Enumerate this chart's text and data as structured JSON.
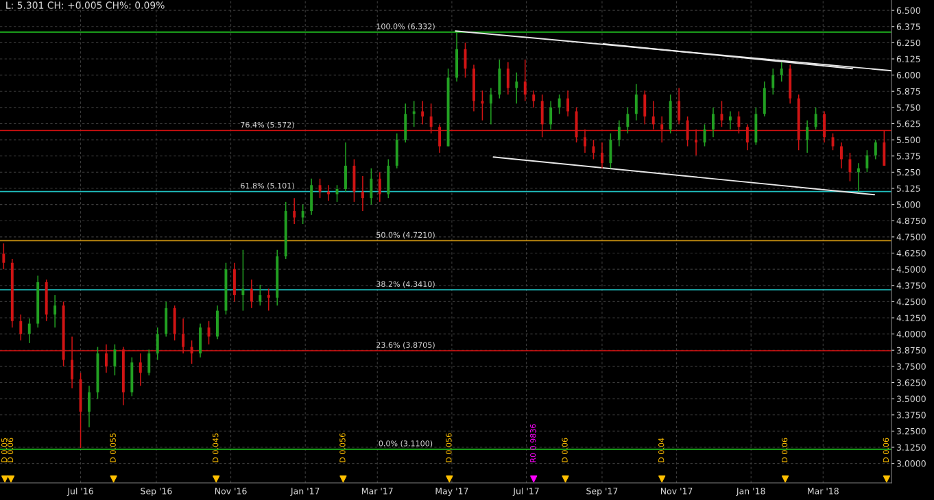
{
  "chart_data": {
    "type": "candlestick",
    "title": "L: 5.301 CH: +0.005 CH%: 0.09%",
    "xlim": [
      "2016-04-26",
      "2018-04-26"
    ],
    "xticks": [
      {
        "value": "2016-07-01",
        "label": "Jul '16"
      },
      {
        "value": "2016-09-01",
        "label": "Sep '16"
      },
      {
        "value": "2016-11-01",
        "label": "Nov '16"
      },
      {
        "value": "2017-01-01",
        "label": "Jan '17"
      },
      {
        "value": "2017-03-01",
        "label": "Mar '17"
      },
      {
        "value": "2017-05-01",
        "label": "May '17"
      },
      {
        "value": "2017-07-01",
        "label": "Jul '17"
      },
      {
        "value": "2017-09-01",
        "label": "Sep '17"
      },
      {
        "value": "2017-11-01",
        "label": "Nov '17"
      },
      {
        "value": "2018-01-01",
        "label": "Jan '18"
      },
      {
        "value": "2018-03-01",
        "label": "Mar '18"
      }
    ],
    "ylim": [
      2.85,
      6.58
    ],
    "yticks": [
      {
        "value": 6.5,
        "label": "6.500"
      },
      {
        "value": 6.375,
        "label": "6.375"
      },
      {
        "value": 6.25,
        "label": "6.250"
      },
      {
        "value": 6.125,
        "label": "6.125"
      },
      {
        "value": 6.0,
        "label": "6.000"
      },
      {
        "value": 5.875,
        "label": "5.875"
      },
      {
        "value": 5.75,
        "label": "5.750"
      },
      {
        "value": 5.625,
        "label": "5.625"
      },
      {
        "value": 5.5,
        "label": "5.500"
      },
      {
        "value": 5.375,
        "label": "5.375"
      },
      {
        "value": 5.25,
        "label": "5.250"
      },
      {
        "value": 5.125,
        "label": "5.125"
      },
      {
        "value": 5.0,
        "label": "5.000"
      },
      {
        "value": 4.875,
        "label": "4.8750"
      },
      {
        "value": 4.75,
        "label": "4.7500"
      },
      {
        "value": 4.625,
        "label": "4.6250"
      },
      {
        "value": 4.5,
        "label": "4.5000"
      },
      {
        "value": 4.375,
        "label": "4.3750"
      },
      {
        "value": 4.25,
        "label": "4.2500"
      },
      {
        "value": 4.125,
        "label": "4.1250"
      },
      {
        "value": 4.0,
        "label": "4.0000"
      },
      {
        "value": 3.875,
        "label": "3.8750"
      },
      {
        "value": 3.75,
        "label": "3.7500"
      },
      {
        "value": 3.625,
        "label": "3.6250"
      },
      {
        "value": 3.5,
        "label": "3.5000"
      },
      {
        "value": 3.375,
        "label": "3.3750"
      },
      {
        "value": 3.25,
        "label": "3.2500"
      },
      {
        "value": 3.125,
        "label": "3.1250"
      },
      {
        "value": 3.0,
        "label": "3.0000"
      }
    ],
    "grid": true,
    "series": [
      {
        "x": [
          "2016-04-29",
          "2016-05-06",
          "2016-05-13",
          "2016-05-20",
          "2016-05-27",
          "2016-06-03",
          "2016-06-10",
          "2016-06-17",
          "2016-06-24",
          "2016-07-01",
          "2016-07-08",
          "2016-07-15",
          "2016-07-22",
          "2016-07-29",
          "2016-08-05",
          "2016-08-12",
          "2016-08-19",
          "2016-08-26",
          "2016-09-02",
          "2016-09-09",
          "2016-09-16",
          "2016-09-23",
          "2016-09-30",
          "2016-10-07",
          "2016-10-14",
          "2016-10-21",
          "2016-10-28",
          "2016-11-04",
          "2016-11-11",
          "2016-11-18",
          "2016-11-25",
          "2016-12-02",
          "2016-12-09",
          "2016-12-16",
          "2016-12-23",
          "2016-12-30",
          "2017-01-06",
          "2017-01-13",
          "2017-01-20",
          "2017-01-27",
          "2017-02-03",
          "2017-02-10",
          "2017-02-17",
          "2017-02-24",
          "2017-03-03",
          "2017-03-10",
          "2017-03-17",
          "2017-03-24",
          "2017-03-31",
          "2017-04-07",
          "2017-04-14",
          "2017-04-21",
          "2017-04-28",
          "2017-05-05",
          "2017-05-12",
          "2017-05-19",
          "2017-05-26",
          "2017-06-02",
          "2017-06-09",
          "2017-06-16",
          "2017-06-23",
          "2017-06-30",
          "2017-07-07",
          "2017-07-14",
          "2017-07-21",
          "2017-07-28",
          "2017-08-04",
          "2017-08-11",
          "2017-08-18",
          "2017-08-25",
          "2017-09-01",
          "2017-09-08",
          "2017-09-15",
          "2017-09-22",
          "2017-09-29",
          "2017-10-06",
          "2017-10-13",
          "2017-10-20",
          "2017-10-27",
          "2017-11-03",
          "2017-11-10",
          "2017-11-17",
          "2017-11-24",
          "2017-12-01",
          "2017-12-08",
          "2017-12-15",
          "2017-12-22",
          "2017-12-29",
          "2018-01-05",
          "2018-01-12",
          "2018-01-19",
          "2018-01-26",
          "2018-02-02",
          "2018-02-09",
          "2018-02-16",
          "2018-02-23",
          "2018-03-02",
          "2018-03-09",
          "2018-03-16",
          "2018-03-23",
          "2018-03-30",
          "2018-04-06",
          "2018-04-13",
          "2018-04-20"
        ],
        "ohlc": [
          [
            4.62,
            4.7,
            4.5,
            4.55
          ],
          [
            4.55,
            4.58,
            4.05,
            4.1
          ],
          [
            4.1,
            4.15,
            3.95,
            4.0
          ],
          [
            4.0,
            4.12,
            3.93,
            4.08
          ],
          [
            4.08,
            4.45,
            4.05,
            4.4
          ],
          [
            4.4,
            4.42,
            4.1,
            4.15
          ],
          [
            4.15,
            4.3,
            4.05,
            4.22
          ],
          [
            4.22,
            4.25,
            3.75,
            3.8
          ],
          [
            3.8,
            3.98,
            3.58,
            3.65
          ],
          [
            3.65,
            3.7,
            3.12,
            3.4
          ],
          [
            3.4,
            3.6,
            3.28,
            3.55
          ],
          [
            3.55,
            3.9,
            3.5,
            3.85
          ],
          [
            3.85,
            3.92,
            3.7,
            3.75
          ],
          [
            3.75,
            3.92,
            3.68,
            3.88
          ],
          [
            3.88,
            3.9,
            3.45,
            3.55
          ],
          [
            3.55,
            3.82,
            3.52,
            3.78
          ],
          [
            3.78,
            3.85,
            3.6,
            3.7
          ],
          [
            3.7,
            3.88,
            3.68,
            3.85
          ],
          [
            3.85,
            4.05,
            3.8,
            4.0
          ],
          [
            4.0,
            4.25,
            3.98,
            4.2
          ],
          [
            4.2,
            4.22,
            3.95,
            4.0
          ],
          [
            4.0,
            4.12,
            3.85,
            3.9
          ],
          [
            3.9,
            3.95,
            3.77,
            3.85
          ],
          [
            3.85,
            4.08,
            3.82,
            4.05
          ],
          [
            4.05,
            4.1,
            3.92,
            3.98
          ],
          [
            3.98,
            4.22,
            3.96,
            4.18
          ],
          [
            4.18,
            4.55,
            4.15,
            4.5
          ],
          [
            4.5,
            4.55,
            4.25,
            4.3
          ],
          [
            4.3,
            4.65,
            4.18,
            4.35
          ],
          [
            4.35,
            4.42,
            4.2,
            4.25
          ],
          [
            4.25,
            4.38,
            4.22,
            4.3
          ],
          [
            4.3,
            4.35,
            4.18,
            4.28
          ],
          [
            4.28,
            4.65,
            4.22,
            4.6
          ],
          [
            4.6,
            5.02,
            4.58,
            4.95
          ],
          [
            4.95,
            5.05,
            4.85,
            4.9
          ],
          [
            4.9,
            5.0,
            4.85,
            4.95
          ],
          [
            4.95,
            5.2,
            4.92,
            5.15
          ],
          [
            5.15,
            5.2,
            5.05,
            5.1
          ],
          [
            5.1,
            5.15,
            5.03,
            5.08
          ],
          [
            5.08,
            5.15,
            5.02,
            5.12
          ],
          [
            5.12,
            5.48,
            5.1,
            5.3
          ],
          [
            5.3,
            5.35,
            5.02,
            5.1
          ],
          [
            5.1,
            5.22,
            4.95,
            5.05
          ],
          [
            5.05,
            5.28,
            5.0,
            5.2
          ],
          [
            5.2,
            5.25,
            5.02,
            5.08
          ],
          [
            5.08,
            5.35,
            5.05,
            5.3
          ],
          [
            5.3,
            5.55,
            5.28,
            5.5
          ],
          [
            5.5,
            5.78,
            5.48,
            5.7
          ],
          [
            5.7,
            5.8,
            5.6,
            5.72
          ],
          [
            5.72,
            5.8,
            5.62,
            5.68
          ],
          [
            5.68,
            5.78,
            5.55,
            5.6
          ],
          [
            5.6,
            5.62,
            5.4,
            5.45
          ],
          [
            5.45,
            6.05,
            5.45,
            5.98
          ],
          [
            5.98,
            6.33,
            5.95,
            6.2
          ],
          [
            6.2,
            6.25,
            5.98,
            6.05
          ],
          [
            6.05,
            6.08,
            5.72,
            5.8
          ],
          [
            5.8,
            5.88,
            5.65,
            5.78
          ],
          [
            5.78,
            5.9,
            5.62,
            5.85
          ],
          [
            5.85,
            6.12,
            5.82,
            6.05
          ],
          [
            6.05,
            6.1,
            5.85,
            5.9
          ],
          [
            5.9,
            6.02,
            5.78,
            5.95
          ],
          [
            5.95,
            6.12,
            5.8,
            5.85
          ],
          [
            5.85,
            5.88,
            5.75,
            5.8
          ],
          [
            5.8,
            5.85,
            5.52,
            5.62
          ],
          [
            5.62,
            5.8,
            5.58,
            5.75
          ],
          [
            5.75,
            5.85,
            5.7,
            5.82
          ],
          [
            5.82,
            5.88,
            5.68,
            5.72
          ],
          [
            5.72,
            5.75,
            5.48,
            5.52
          ],
          [
            5.52,
            5.58,
            5.4,
            5.45
          ],
          [
            5.45,
            5.5,
            5.35,
            5.4
          ],
          [
            5.4,
            5.48,
            5.28,
            5.32
          ],
          [
            5.32,
            5.55,
            5.28,
            5.5
          ],
          [
            5.5,
            5.65,
            5.45,
            5.6
          ],
          [
            5.6,
            5.75,
            5.55,
            5.7
          ],
          [
            5.7,
            5.93,
            5.65,
            5.85
          ],
          [
            5.85,
            5.88,
            5.62,
            5.68
          ],
          [
            5.68,
            5.8,
            5.58,
            5.62
          ],
          [
            5.62,
            5.68,
            5.48,
            5.58
          ],
          [
            5.58,
            5.85,
            5.55,
            5.8
          ],
          [
            5.8,
            5.9,
            5.62,
            5.65
          ],
          [
            5.65,
            5.68,
            5.45,
            5.5
          ],
          [
            5.5,
            5.58,
            5.38,
            5.48
          ],
          [
            5.48,
            5.62,
            5.45,
            5.58
          ],
          [
            5.58,
            5.75,
            5.52,
            5.7
          ],
          [
            5.7,
            5.8,
            5.6,
            5.65
          ],
          [
            5.65,
            5.72,
            5.58,
            5.68
          ],
          [
            5.68,
            5.72,
            5.55,
            5.6
          ],
          [
            5.6,
            5.62,
            5.42,
            5.48
          ],
          [
            5.48,
            5.75,
            5.46,
            5.7
          ],
          [
            5.7,
            5.95,
            5.68,
            5.9
          ],
          [
            5.9,
            6.05,
            5.85,
            6.0
          ],
          [
            6.0,
            6.1,
            5.95,
            6.05
          ],
          [
            6.05,
            6.08,
            5.78,
            5.82
          ],
          [
            5.82,
            5.85,
            5.42,
            5.5
          ],
          [
            5.5,
            5.65,
            5.4,
            5.6
          ],
          [
            5.6,
            5.75,
            5.58,
            5.7
          ],
          [
            5.7,
            5.72,
            5.48,
            5.52
          ],
          [
            5.52,
            5.55,
            5.42,
            5.45
          ],
          [
            5.45,
            5.48,
            5.28,
            5.35
          ],
          [
            5.35,
            5.4,
            5.18,
            5.25
          ],
          [
            5.25,
            5.32,
            5.1,
            5.28
          ],
          [
            5.28,
            5.42,
            5.25,
            5.38
          ],
          [
            5.38,
            5.5,
            5.35,
            5.48
          ],
          [
            5.48,
            5.57,
            5.3,
            5.3
          ]
        ],
        "colors": [
          "#d01414",
          "#d01414",
          "#d01414",
          "#22a022",
          "#22a022",
          "#d01414",
          "#22a022",
          "#d01414",
          "#d01414",
          "#d01414",
          "#22a022",
          "#22a022",
          "#d01414",
          "#22a022",
          "#d01414",
          "#22a022",
          "#d01414",
          "#22a022",
          "#22a022",
          "#22a022",
          "#d01414",
          "#d01414",
          "#d01414",
          "#22a022",
          "#d01414",
          "#22a022",
          "#22a022",
          "#d01414",
          "#22a022",
          "#d01414",
          "#22a022",
          "#d01414",
          "#22a022",
          "#22a022",
          "#d01414",
          "#22a022",
          "#22a022",
          "#d01414",
          "#d01414",
          "#22a022",
          "#22a022",
          "#d01414",
          "#d01414",
          "#22a022",
          "#d01414",
          "#22a022",
          "#22a022",
          "#22a022",
          "#22a022",
          "#d01414",
          "#d01414",
          "#d01414",
          "#22a022",
          "#22a022",
          "#d01414",
          "#d01414",
          "#d01414",
          "#22a022",
          "#22a022",
          "#d01414",
          "#22a022",
          "#d01414",
          "#d01414",
          "#d01414",
          "#22a022",
          "#22a022",
          "#d01414",
          "#d01414",
          "#d01414",
          "#d01414",
          "#d01414",
          "#22a022",
          "#22a022",
          "#22a022",
          "#22a022",
          "#d01414",
          "#d01414",
          "#d01414",
          "#22a022",
          "#d01414",
          "#d01414",
          "#d01414",
          "#22a022",
          "#22a022",
          "#d01414",
          "#22a022",
          "#d01414",
          "#d01414",
          "#22a022",
          "#22a022",
          "#22a022",
          "#22a022",
          "#d01414",
          "#d01414",
          "#22a022",
          "#22a022",
          "#d01414",
          "#d01414",
          "#d01414",
          "#d01414",
          "#22a022",
          "#22a022",
          "#22a022",
          "#d01414"
        ]
      },
      {
        "type": "line",
        "color": "#e8e8e8",
        "x": [
          "2017-05-04",
          "2018-04-26"
        ],
        "values": [
          6.341,
          6.034
        ]
      },
      {
        "type": "line",
        "color": "#e8e8e8",
        "x": [
          "2017-09-02",
          "2018-03-25"
        ],
        "values": [
          6.241,
          6.05
        ]
      },
      {
        "type": "line",
        "color": "#e8e8e8",
        "x": [
          "2017-06-04",
          "2018-04-12"
        ],
        "values": [
          5.367,
          5.076
        ]
      },
      {
        "type": "scatter",
        "color": "#ffc000",
        "marker": "triangle",
        "x": [
          "2016-04-30",
          "2016-05-05",
          "2016-07-28",
          "2016-10-20",
          "2017-02-01",
          "2017-04-29",
          "2017-08-02",
          "2017-10-20",
          "2018-01-29",
          "2018-04-22"
        ],
        "values": [
          2.88,
          2.88,
          2.88,
          2.88,
          2.88,
          2.88,
          2.88,
          2.88,
          2.88,
          2.88
        ],
        "value_labels": [
          "D 0.05",
          "D 0.06",
          "D 0.055",
          "D 0.045",
          "D 0.056",
          "D 0.056",
          "D 0.06",
          "D 0.04",
          "D 0.06",
          "D 0.06"
        ]
      },
      {
        "type": "scatter",
        "color": "#ff00ff",
        "marker": "triangle",
        "x": [
          "2017-07-07"
        ],
        "values": [
          2.88
        ],
        "value_labels": [
          "R0 0.9836"
        ]
      }
    ],
    "ref_lines": [
      {
        "axis": "y",
        "value": 6.332,
        "label": "100.0% (6.332)",
        "color": "#20c020"
      },
      {
        "axis": "y",
        "value": 5.572,
        "label": "76.4% (5.572)",
        "color": "#d01010"
      },
      {
        "axis": "y",
        "value": 5.101,
        "label": "61.8% (5.101)",
        "color": "#20c0c0"
      },
      {
        "axis": "y",
        "value": 4.721,
        "label": "50.0% (4.7210)",
        "color": "#c89010"
      },
      {
        "axis": "y",
        "value": 4.341,
        "label": "38.2% (4.3410)",
        "color": "#20c0c0"
      },
      {
        "axis": "y",
        "value": 3.8705,
        "label": "23.6% (3.8705)",
        "color": "#d01010"
      },
      {
        "axis": "y",
        "value": 3.11,
        "label": "0.0% (3.1100)",
        "color": "#20c020"
      }
    ]
  }
}
